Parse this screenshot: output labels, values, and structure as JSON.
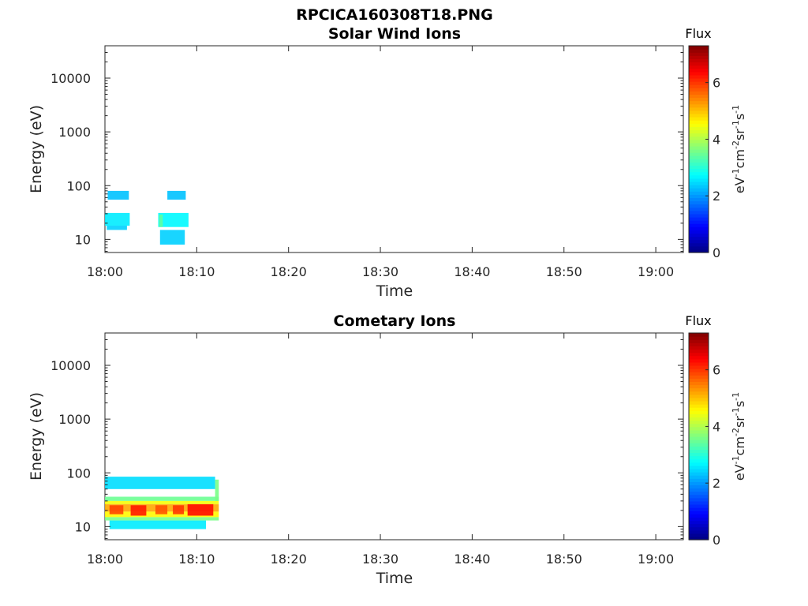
{
  "figure_title": "RPCICA160308T18.PNG",
  "colorbar": {
    "title": "Flux",
    "unit_parts": [
      "eV",
      "-1",
      "cm",
      "-2",
      "sr",
      "-1",
      "s",
      "-1"
    ],
    "ticks": [
      "0",
      "2",
      "4",
      "6"
    ],
    "tick_values": [
      0,
      2,
      4,
      6
    ],
    "range": [
      0,
      7.3
    ],
    "colormap": "jet"
  },
  "chart_data": [
    {
      "type": "heatmap",
      "title": "Solar Wind Ions",
      "xlabel": "Time",
      "ylabel": "Energy (eV)",
      "yscale": "log",
      "xticks": [
        "18:00",
        "18:10",
        "18:20",
        "18:30",
        "18:40",
        "18:50",
        "19:00"
      ],
      "xlim_minutes": [
        0,
        63
      ],
      "yticks": [
        "10",
        "100",
        "1000",
        "10000"
      ],
      "ylim": [
        5.7,
        40000
      ],
      "grid": false,
      "cells": [
        {
          "t0": 0.0,
          "t1": 2.7,
          "e0": 18,
          "e1": 31,
          "flux": 2.6
        },
        {
          "t0": 0.2,
          "t1": 2.4,
          "e0": 15,
          "e1": 18,
          "flux": 2.4
        },
        {
          "t0": 0.3,
          "t1": 2.6,
          "e0": 55,
          "e1": 80,
          "flux": 2.3
        },
        {
          "t0": 5.8,
          "t1": 9.1,
          "e0": 17,
          "e1": 31,
          "flux": 2.7
        },
        {
          "t0": 5.9,
          "t1": 6.3,
          "e0": 17,
          "e1": 29,
          "flux": 3.4
        },
        {
          "t0": 6.0,
          "t1": 8.7,
          "e0": 8,
          "e1": 15,
          "flux": 2.4
        },
        {
          "t0": 6.8,
          "t1": 8.8,
          "e0": 55,
          "e1": 80,
          "flux": 2.3
        }
      ]
    },
    {
      "type": "heatmap",
      "title": "Cometary Ions",
      "xlabel": "Time",
      "ylabel": "Energy (eV)",
      "yscale": "log",
      "xticks": [
        "18:00",
        "18:10",
        "18:20",
        "18:30",
        "18:40",
        "18:50",
        "19:00"
      ],
      "xlim_minutes": [
        0,
        63
      ],
      "yticks": [
        "10",
        "100",
        "1000",
        "10000"
      ],
      "ylim": [
        5.7,
        40000
      ],
      "grid": false,
      "cells": [
        {
          "t0": 0.0,
          "t1": 12.4,
          "e0": 30,
          "e1": 36,
          "flux": 3.5
        },
        {
          "t0": 0.0,
          "t1": 12.4,
          "e0": 26,
          "e1": 30,
          "flux": 4.5
        },
        {
          "t0": 0.0,
          "t1": 12.4,
          "e0": 19,
          "e1": 26,
          "flux": 5.2
        },
        {
          "t0": 0.0,
          "t1": 12.4,
          "e0": 15,
          "e1": 19,
          "flux": 4.6
        },
        {
          "t0": 0.0,
          "t1": 12.4,
          "e0": 13,
          "e1": 15,
          "flux": 3.6
        },
        {
          "t0": 0.5,
          "t1": 2.0,
          "e0": 17,
          "e1": 25,
          "flux": 5.9
        },
        {
          "t0": 2.8,
          "t1": 4.5,
          "e0": 16,
          "e1": 25,
          "flux": 6.2
        },
        {
          "t0": 5.5,
          "t1": 6.8,
          "e0": 17,
          "e1": 25,
          "flux": 5.8
        },
        {
          "t0": 7.4,
          "t1": 8.6,
          "e0": 17,
          "e1": 25,
          "flux": 6.0
        },
        {
          "t0": 9.0,
          "t1": 11.8,
          "e0": 16,
          "e1": 26,
          "flux": 6.3
        },
        {
          "t0": 12.0,
          "t1": 12.4,
          "e0": 30,
          "e1": 75,
          "flux": 3.6
        },
        {
          "t0": 0.0,
          "t1": 12.0,
          "e0": 50,
          "e1": 85,
          "flux": 2.5
        },
        {
          "t0": 0.5,
          "t1": 11.0,
          "e0": 9,
          "e1": 13,
          "flux": 2.6
        }
      ]
    }
  ]
}
